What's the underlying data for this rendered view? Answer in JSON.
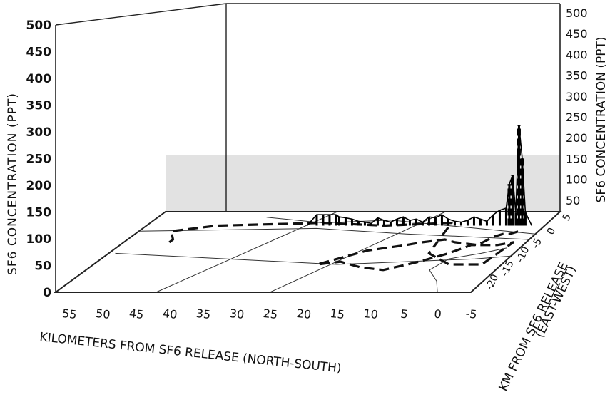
{
  "chart_data": {
    "type": "line",
    "projection": "3D perspective",
    "left_axis": {
      "label": "SF6 CONCENTRATION (PPT)",
      "ticks": [
        0,
        50,
        100,
        150,
        200,
        250,
        300,
        350,
        400,
        450,
        500
      ],
      "range": [
        0,
        500
      ]
    },
    "right_axis": {
      "label": "SF6 CONCENTRATION (PPT)",
      "ticks": [
        50,
        100,
        150,
        200,
        250,
        300,
        350,
        400,
        450,
        500
      ],
      "range": [
        0,
        500
      ]
    },
    "x_axis": {
      "label": "KILOMETERS FROM SF6 RELEASE (NORTH-SOUTH)",
      "ticks": [
        55,
        50,
        45,
        40,
        35,
        30,
        25,
        20,
        15,
        10,
        5,
        0,
        -5
      ],
      "range": [
        57,
        -5
      ]
    },
    "y_axis": {
      "label_line1": "KM FROM SF6 RELEASE",
      "label_line2": "(EAST-WEST)",
      "ticks": [
        5,
        0,
        -5,
        -10,
        -15,
        -20
      ],
      "range": [
        -22,
        7
      ]
    },
    "series": [
      {
        "kind": "flight-track",
        "style": "dashed",
        "points": [
          [
            50,
            -4
          ],
          [
            50,
            -3
          ],
          [
            52,
            0
          ],
          [
            46,
            2
          ],
          [
            30,
            3
          ],
          [
            20,
            2
          ],
          [
            10,
            3
          ],
          [
            8,
            -8
          ],
          [
            3,
            -12
          ],
          [
            -2,
            -12
          ],
          [
            -3,
            -4
          ],
          [
            -1,
            -5
          ],
          [
            3,
            -5
          ],
          [
            5,
            -8
          ],
          [
            8,
            -11
          ],
          [
            12,
            -14
          ],
          [
            16,
            -13
          ],
          [
            20,
            -11
          ],
          [
            23,
            -12
          ],
          [
            18,
            -7
          ],
          [
            13,
            -5
          ],
          [
            11,
            -4
          ],
          [
            8,
            -3
          ],
          [
            6,
            -4
          ],
          [
            2,
            -5
          ],
          [
            1,
            -2
          ],
          [
            0,
            -1
          ],
          [
            -1,
            -1
          ],
          [
            -2,
            0
          ]
        ]
      },
      {
        "kind": "concentration-profile",
        "style": "filled",
        "profile_x": [
          32,
          30.5,
          29.5,
          28.5,
          27.5,
          27,
          26,
          25,
          24,
          23,
          22,
          21,
          20,
          19,
          18,
          17,
          16,
          15,
          14,
          13,
          12,
          11,
          10,
          9,
          8,
          7,
          6,
          5,
          4,
          3,
          2,
          1,
          0.5,
          0,
          -0.5,
          -1,
          -1.5,
          -2,
          -3
        ],
        "profile_y": [
          0,
          25,
          25,
          25,
          25,
          20,
          18,
          15,
          10,
          8,
          5,
          18,
          12,
          8,
          15,
          20,
          12,
          15,
          8,
          20,
          18,
          25,
          15,
          10,
          8,
          12,
          20,
          15,
          10,
          25,
          35,
          40,
          95,
          115,
          30,
          230,
          155,
          30,
          0
        ],
        "peak_values": [
          {
            "x": 0.5,
            "y": 95
          },
          {
            "x": 0,
            "y": 115
          },
          {
            "x": -1,
            "y": 230
          },
          {
            "x": -1.5,
            "y": 155
          }
        ]
      }
    ],
    "grid": true
  }
}
